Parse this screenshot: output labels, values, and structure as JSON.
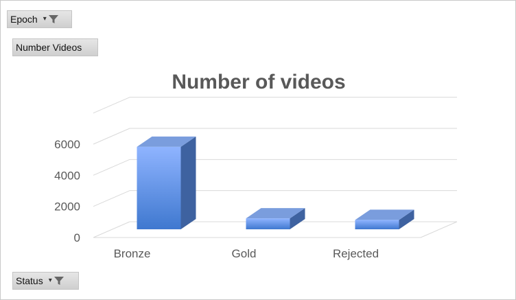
{
  "filters": {
    "epoch_label": "Epoch",
    "values_label": "Number Videos",
    "status_label": "Status"
  },
  "icons": {
    "dropdown": "chevron-down-icon",
    "filter": "funnel-icon"
  },
  "colors": {
    "bar_front_top": "#8fb4ff",
    "bar_front_bottom": "#3f78cf",
    "bar_top": "#7a9ddd",
    "bar_side": "#3e62a0",
    "grid": "#d9d9d9",
    "title": "#595959"
  },
  "chart_data": {
    "type": "bar",
    "title": "Number of videos",
    "categories": [
      "Bronze",
      "Gold",
      "Rejected"
    ],
    "values": [
      5300,
      700,
      600
    ],
    "ylim": [
      0,
      6000
    ],
    "yticks": [
      "0",
      "2000",
      "4000",
      "6000"
    ],
    "grid": true,
    "style": "3d-column"
  }
}
